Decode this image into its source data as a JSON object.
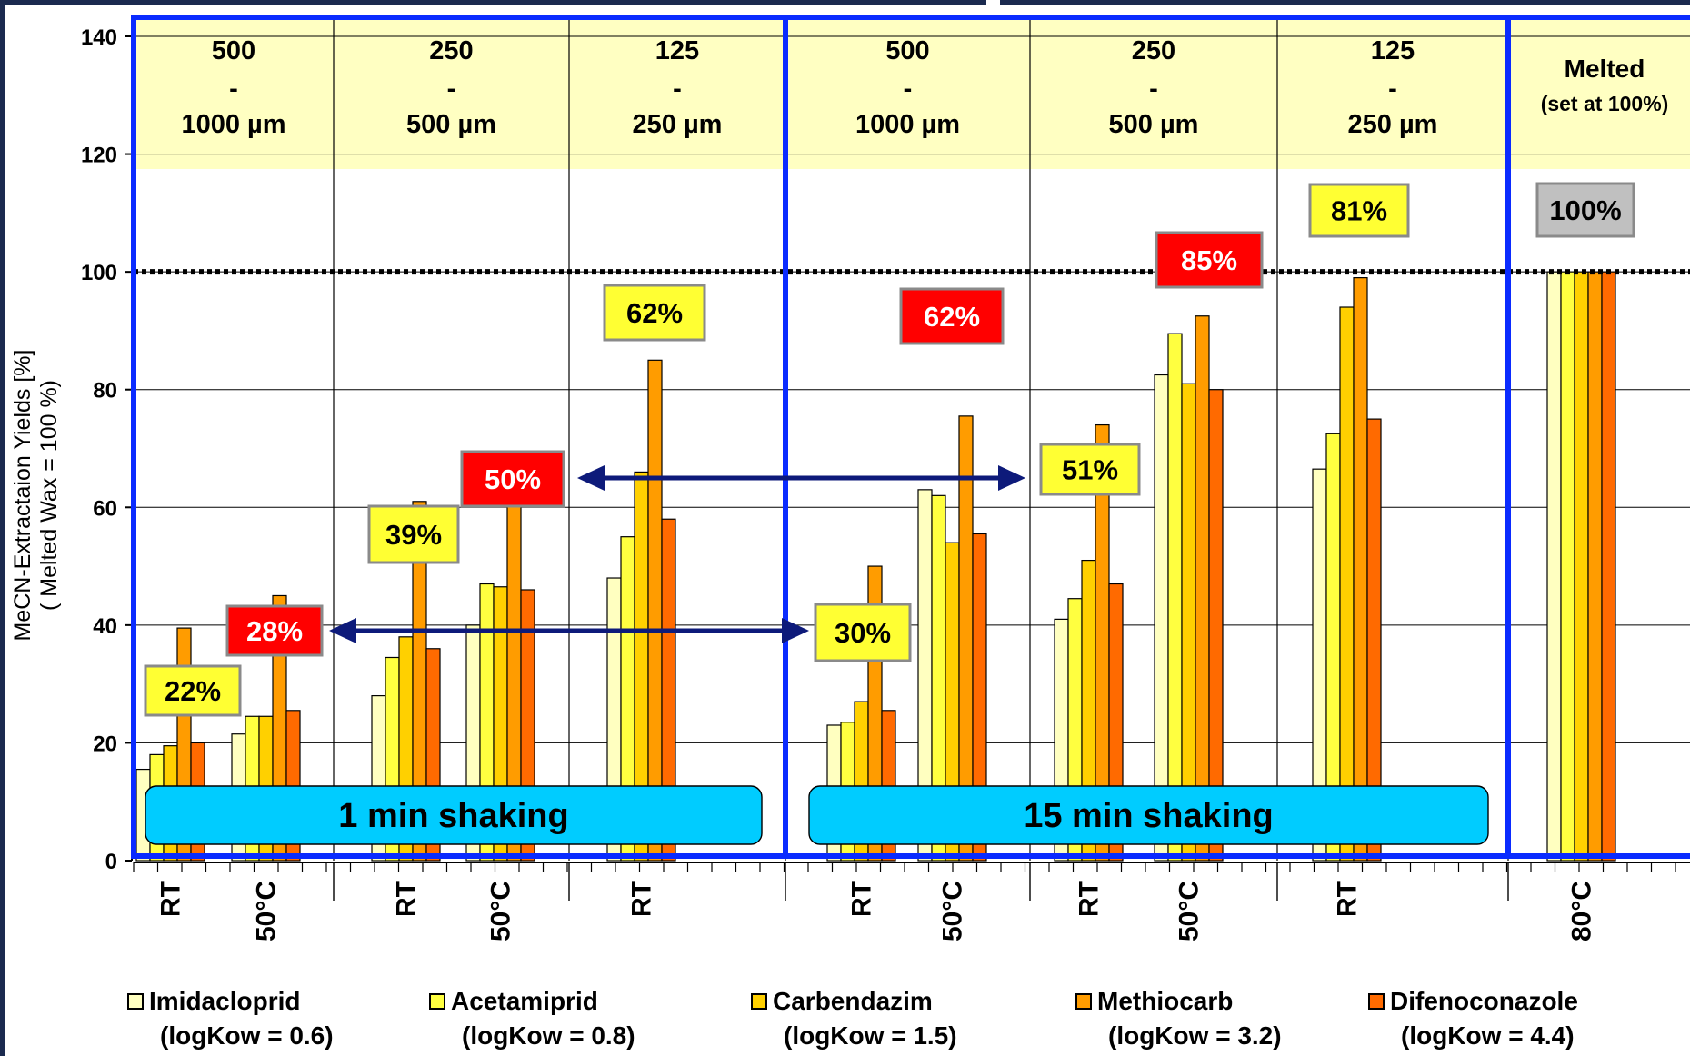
{
  "chart_data": {
    "type": "bar",
    "ylabel": "MeCN-Extractaion Yields [%]",
    "ylabel_sub": "( Melted Wax = 100 %)",
    "ylim": [
      0,
      140
    ],
    "yticks": [
      0,
      20,
      40,
      60,
      80,
      100,
      120,
      140
    ],
    "reference_line": 100,
    "series": [
      {
        "name": "Imidacloprid",
        "logkow": "(logKow = 0.6)",
        "color": "#ffffc0"
      },
      {
        "name": "Acetamiprid",
        "logkow": "(logKow = 0.8)",
        "color": "#ffff40"
      },
      {
        "name": "Carbendazim",
        "logkow": "(logKow = 1.5)",
        "color": "#ffd000"
      },
      {
        "name": "Methiocarb",
        "logkow": "(logKow = 3.2)",
        "color": "#ff9c00"
      },
      {
        "name": "Difenoconazole",
        "logkow": "(logKow = 4.4)",
        "color": "#ff6a00"
      }
    ],
    "groups": [
      {
        "category": "RT",
        "values": [
          15.5,
          18,
          19.5,
          39.5,
          20
        ]
      },
      {
        "category": "50°C",
        "values": [
          21.5,
          24.5,
          24.5,
          45,
          25.5
        ]
      },
      {
        "category": "RT",
        "values": [
          28,
          34.5,
          38,
          61,
          36
        ]
      },
      {
        "category": "50°C",
        "values": [
          40,
          47,
          46.5,
          69,
          46
        ]
      },
      {
        "category": "RT",
        "values": [
          48,
          55,
          66,
          85,
          58
        ]
      },
      {
        "category": "RT",
        "values": [
          23,
          23.5,
          27,
          50,
          25.5
        ]
      },
      {
        "category": "50°C",
        "values": [
          63,
          62,
          54,
          75.5,
          55.5
        ]
      },
      {
        "category": "RT",
        "values": [
          41,
          44.5,
          51,
          74,
          47
        ]
      },
      {
        "category": "50°C",
        "values": [
          82.5,
          89.5,
          81,
          92.5,
          80
        ]
      },
      {
        "category": "RT",
        "values": [
          66.5,
          72.5,
          94,
          99,
          75
        ]
      },
      {
        "category": "80°C",
        "values": [
          100,
          100,
          100,
          100,
          100
        ]
      }
    ],
    "size_fractions": [
      {
        "top": "500",
        "mid": "-",
        "bottom": "1000 µm"
      },
      {
        "top": "250",
        "mid": "-",
        "bottom": "500 µm"
      },
      {
        "top": "125",
        "mid": "-",
        "bottom": "250 µm"
      },
      {
        "top": "500",
        "mid": "-",
        "bottom": "1000 µm"
      },
      {
        "top": "250",
        "mid": "-",
        "bottom": "500 µm"
      },
      {
        "top": "125",
        "mid": "-",
        "bottom": "250 µm"
      },
      {
        "top": "Melted",
        "mid": "",
        "bottom": "(set at 100%)"
      }
    ],
    "shaking_labels": [
      "1 min shaking",
      "15 min shaking"
    ],
    "annotations": [
      {
        "text": "22%",
        "style": "yellow"
      },
      {
        "text": "28%",
        "style": "red"
      },
      {
        "text": "39%",
        "style": "yellow"
      },
      {
        "text": "50%",
        "style": "red"
      },
      {
        "text": "62%",
        "style": "yellow"
      },
      {
        "text": "30%",
        "style": "yellow"
      },
      {
        "text": "62%",
        "style": "red"
      },
      {
        "text": "51%",
        "style": "yellow"
      },
      {
        "text": "85%",
        "style": "red"
      },
      {
        "text": "81%",
        "style": "yellow"
      },
      {
        "text": "100%",
        "style": "gray"
      }
    ],
    "colors": {
      "frame": "#0a2bff",
      "header_fill": "#ffffc2",
      "shaking_fill": "#00ccff",
      "arrow": "#0d1a7a",
      "annot_yellow": "#ffff33",
      "annot_red": "#ff0000",
      "annot_gray": "#c0c0c0"
    }
  }
}
